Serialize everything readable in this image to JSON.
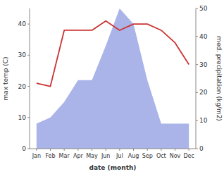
{
  "chart_data": {
    "type": "line",
    "categories": [
      "Jan",
      "Feb",
      "Mar",
      "Apr",
      "May",
      "Jun",
      "Jul",
      "Aug",
      "Sep",
      "Oct",
      "Nov",
      "Dec"
    ],
    "series": [
      {
        "type": "area",
        "color": "#aab4e8",
        "values": [
          8,
          10,
          15,
          22,
          22,
          33,
          45,
          40,
          22,
          8,
          8,
          8
        ]
      },
      {
        "type": "line",
        "color": "#cc3333",
        "values": [
          21,
          20,
          38,
          38,
          38,
          41,
          38,
          40,
          40,
          38,
          34,
          27
        ]
      }
    ],
    "x_label": "date (month)",
    "y_label": "max temp (C)",
    "y2_label": "med. precipitation (kg/m2)",
    "ylim": [
      0,
      45
    ],
    "yticks": [
      0,
      10,
      20,
      30,
      40
    ],
    "y2lim": [
      0,
      50
    ],
    "y2ticks": [
      0,
      10,
      20,
      30,
      40,
      50
    ]
  }
}
